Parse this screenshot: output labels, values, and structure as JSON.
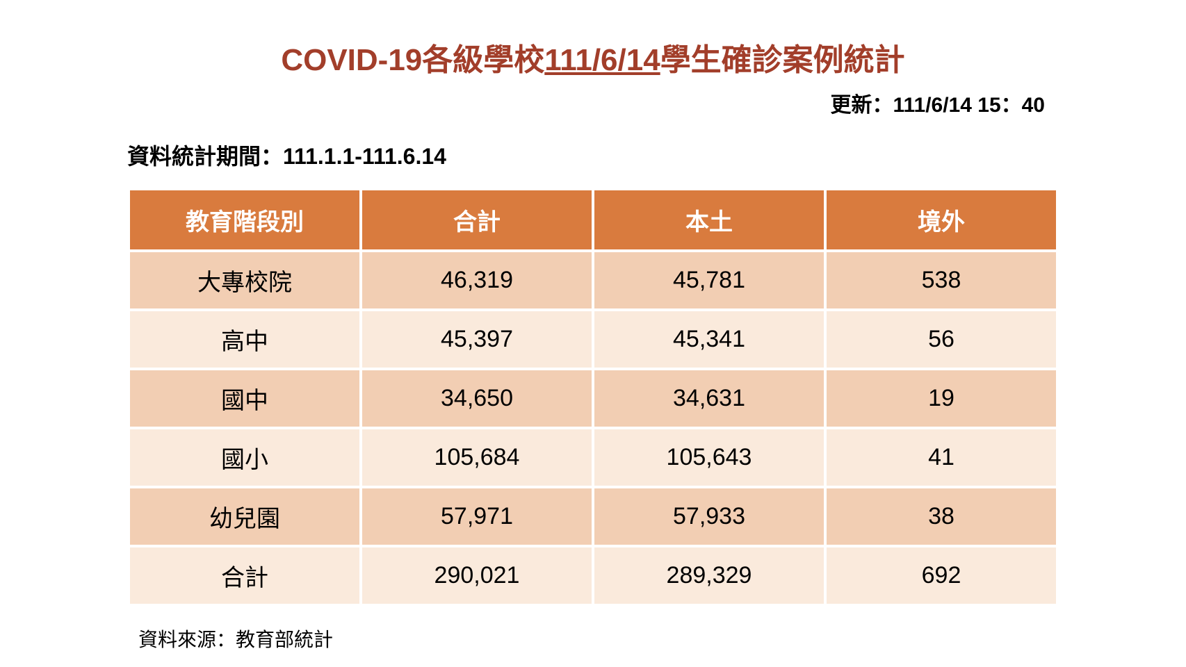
{
  "title": {
    "prefix": "COVID-19各級學校",
    "date": "111/6/14",
    "suffix": "學生確診案例統計",
    "color": "#a23e2a",
    "fontsize": 44
  },
  "update": {
    "label": "更新：",
    "value": "111/6/14 15：40",
    "fontsize": 30
  },
  "period": {
    "label": "資料統計期間：",
    "value": "111.1.1-111.6.14",
    "fontsize": 32
  },
  "table": {
    "type": "table",
    "header_bg": "#d97b3e",
    "header_text_color": "#ffffff",
    "row_bg_odd": "#f2ceb3",
    "row_bg_even": "#faeadc",
    "cell_fontsize": 34,
    "columns": [
      "教育階段別",
      "合計",
      "本土",
      "境外"
    ],
    "column_widths": [
      "25%",
      "25%",
      "25%",
      "25%"
    ],
    "rows": [
      [
        "大專校院",
        "46,319",
        "45,781",
        "538"
      ],
      [
        "高中",
        "45,397",
        "45,341",
        "56"
      ],
      [
        "國中",
        "34,650",
        "34,631",
        "19"
      ],
      [
        "國小",
        "105,684",
        "105,643",
        "41"
      ],
      [
        "幼兒園",
        "57,971",
        "57,933",
        "38"
      ],
      [
        "合計",
        "290,021",
        "289,329",
        "692"
      ]
    ]
  },
  "source": {
    "label": "資料來源：",
    "value": "教育部統計",
    "fontsize": 28
  },
  "background_color": "#ffffff"
}
